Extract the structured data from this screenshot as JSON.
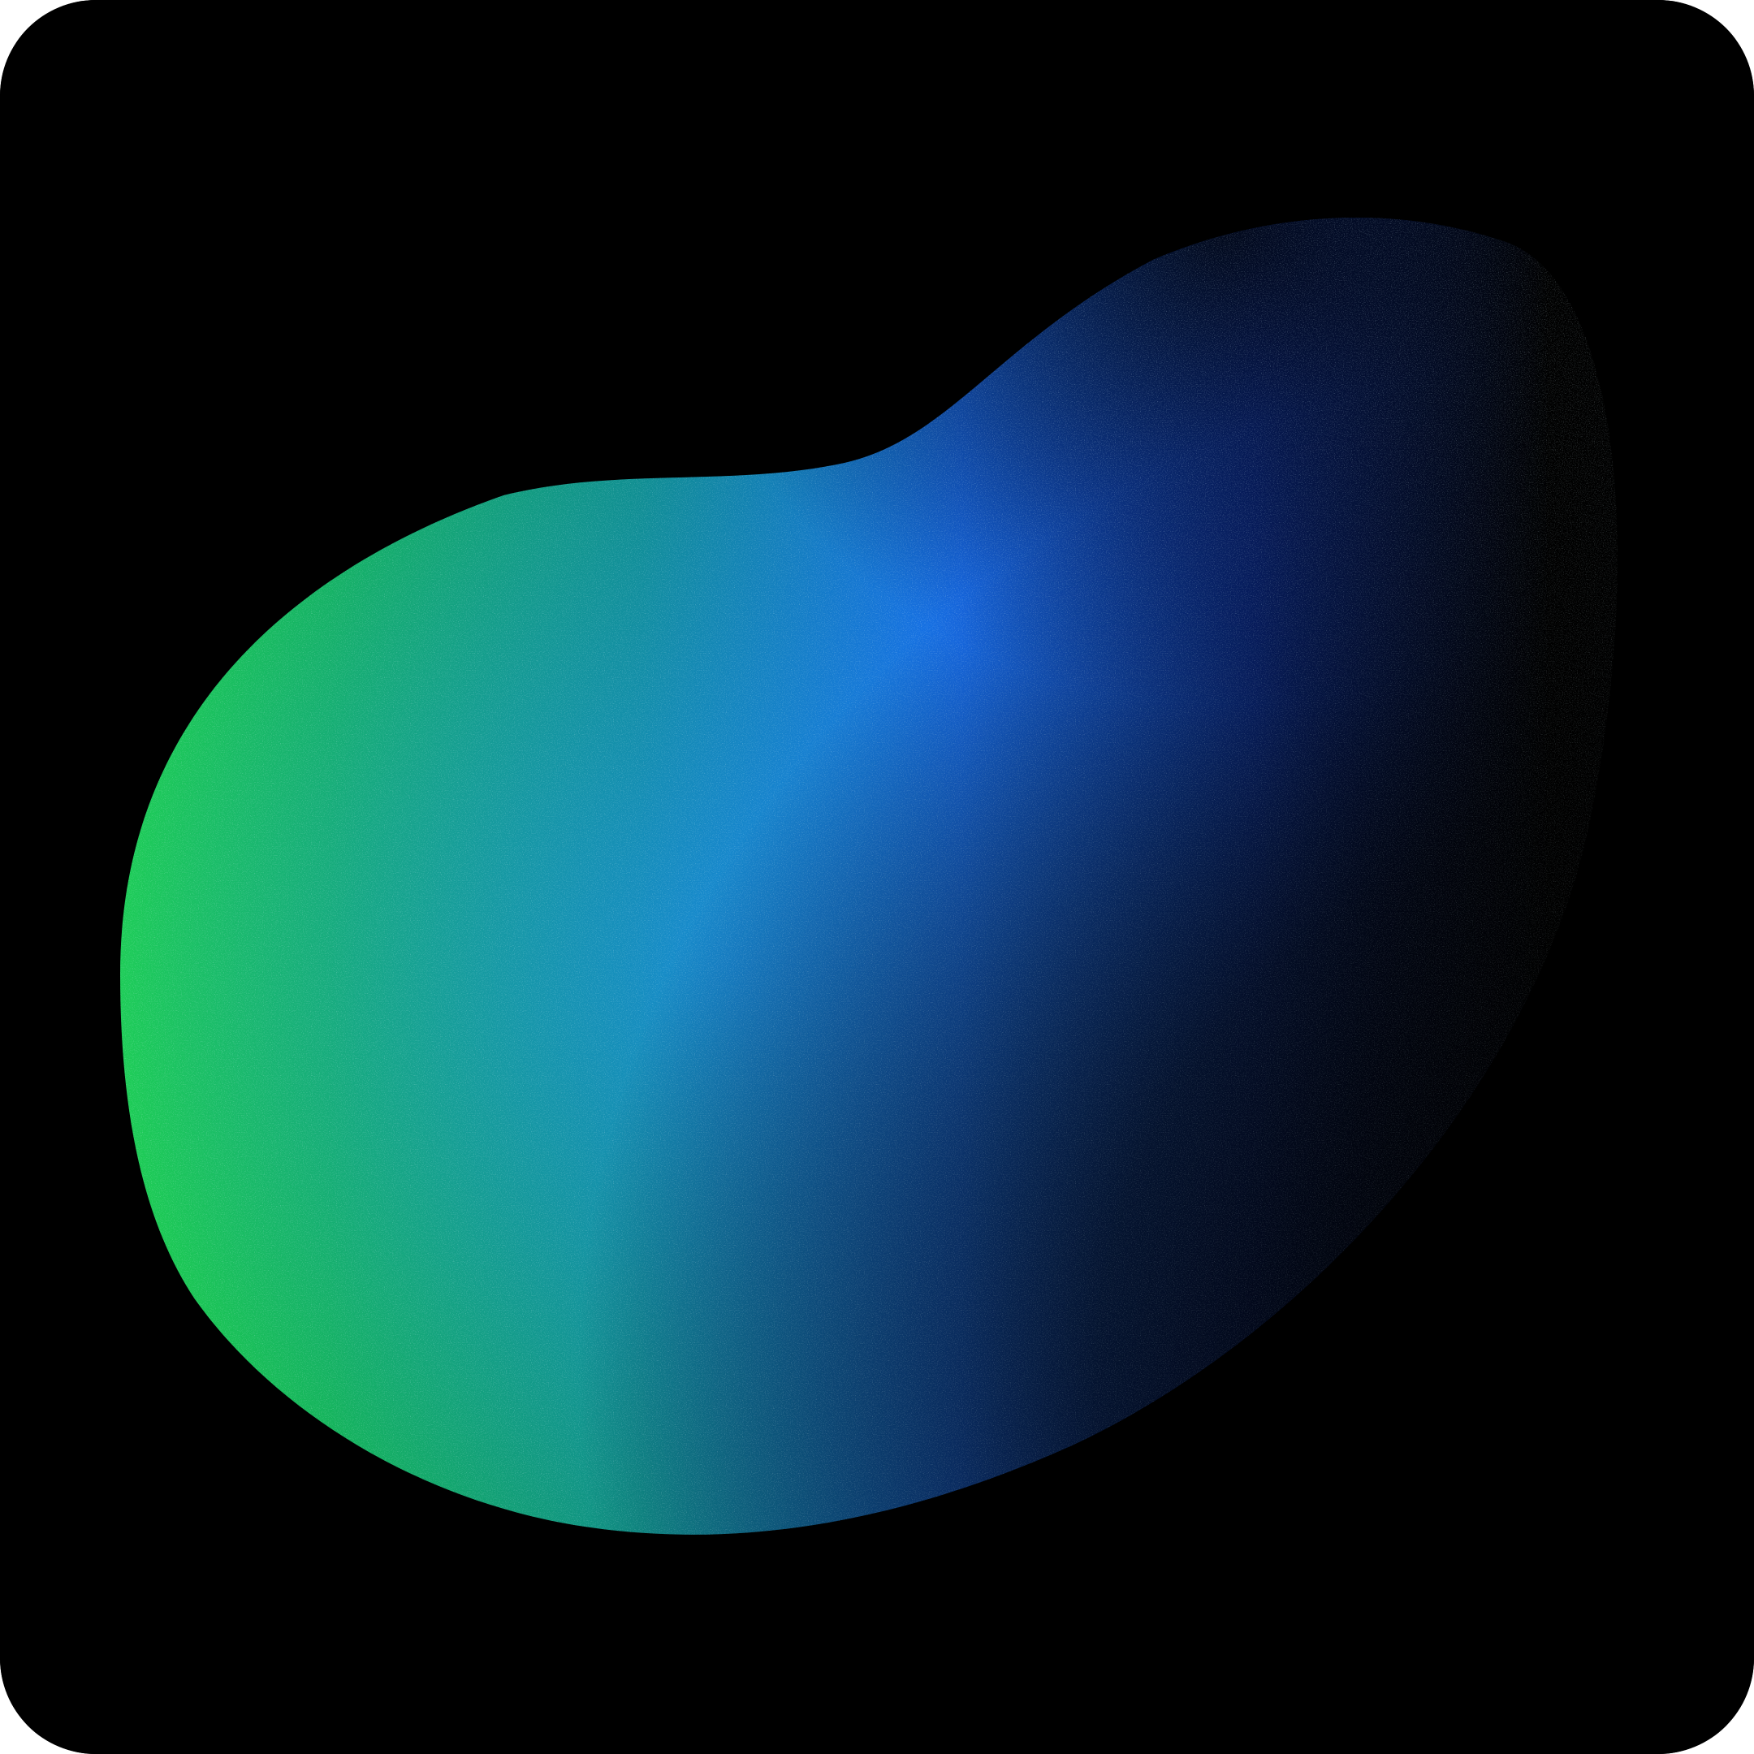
{
  "artwork": {
    "background_color": "#000000",
    "blob": {
      "colors": {
        "green": "#1ecf52",
        "teal": "#0f8f88",
        "blue": "#1565e6",
        "deep_blue": "#0a2f9e",
        "fade": "#000000"
      },
      "has_grain_texture": true
    }
  }
}
